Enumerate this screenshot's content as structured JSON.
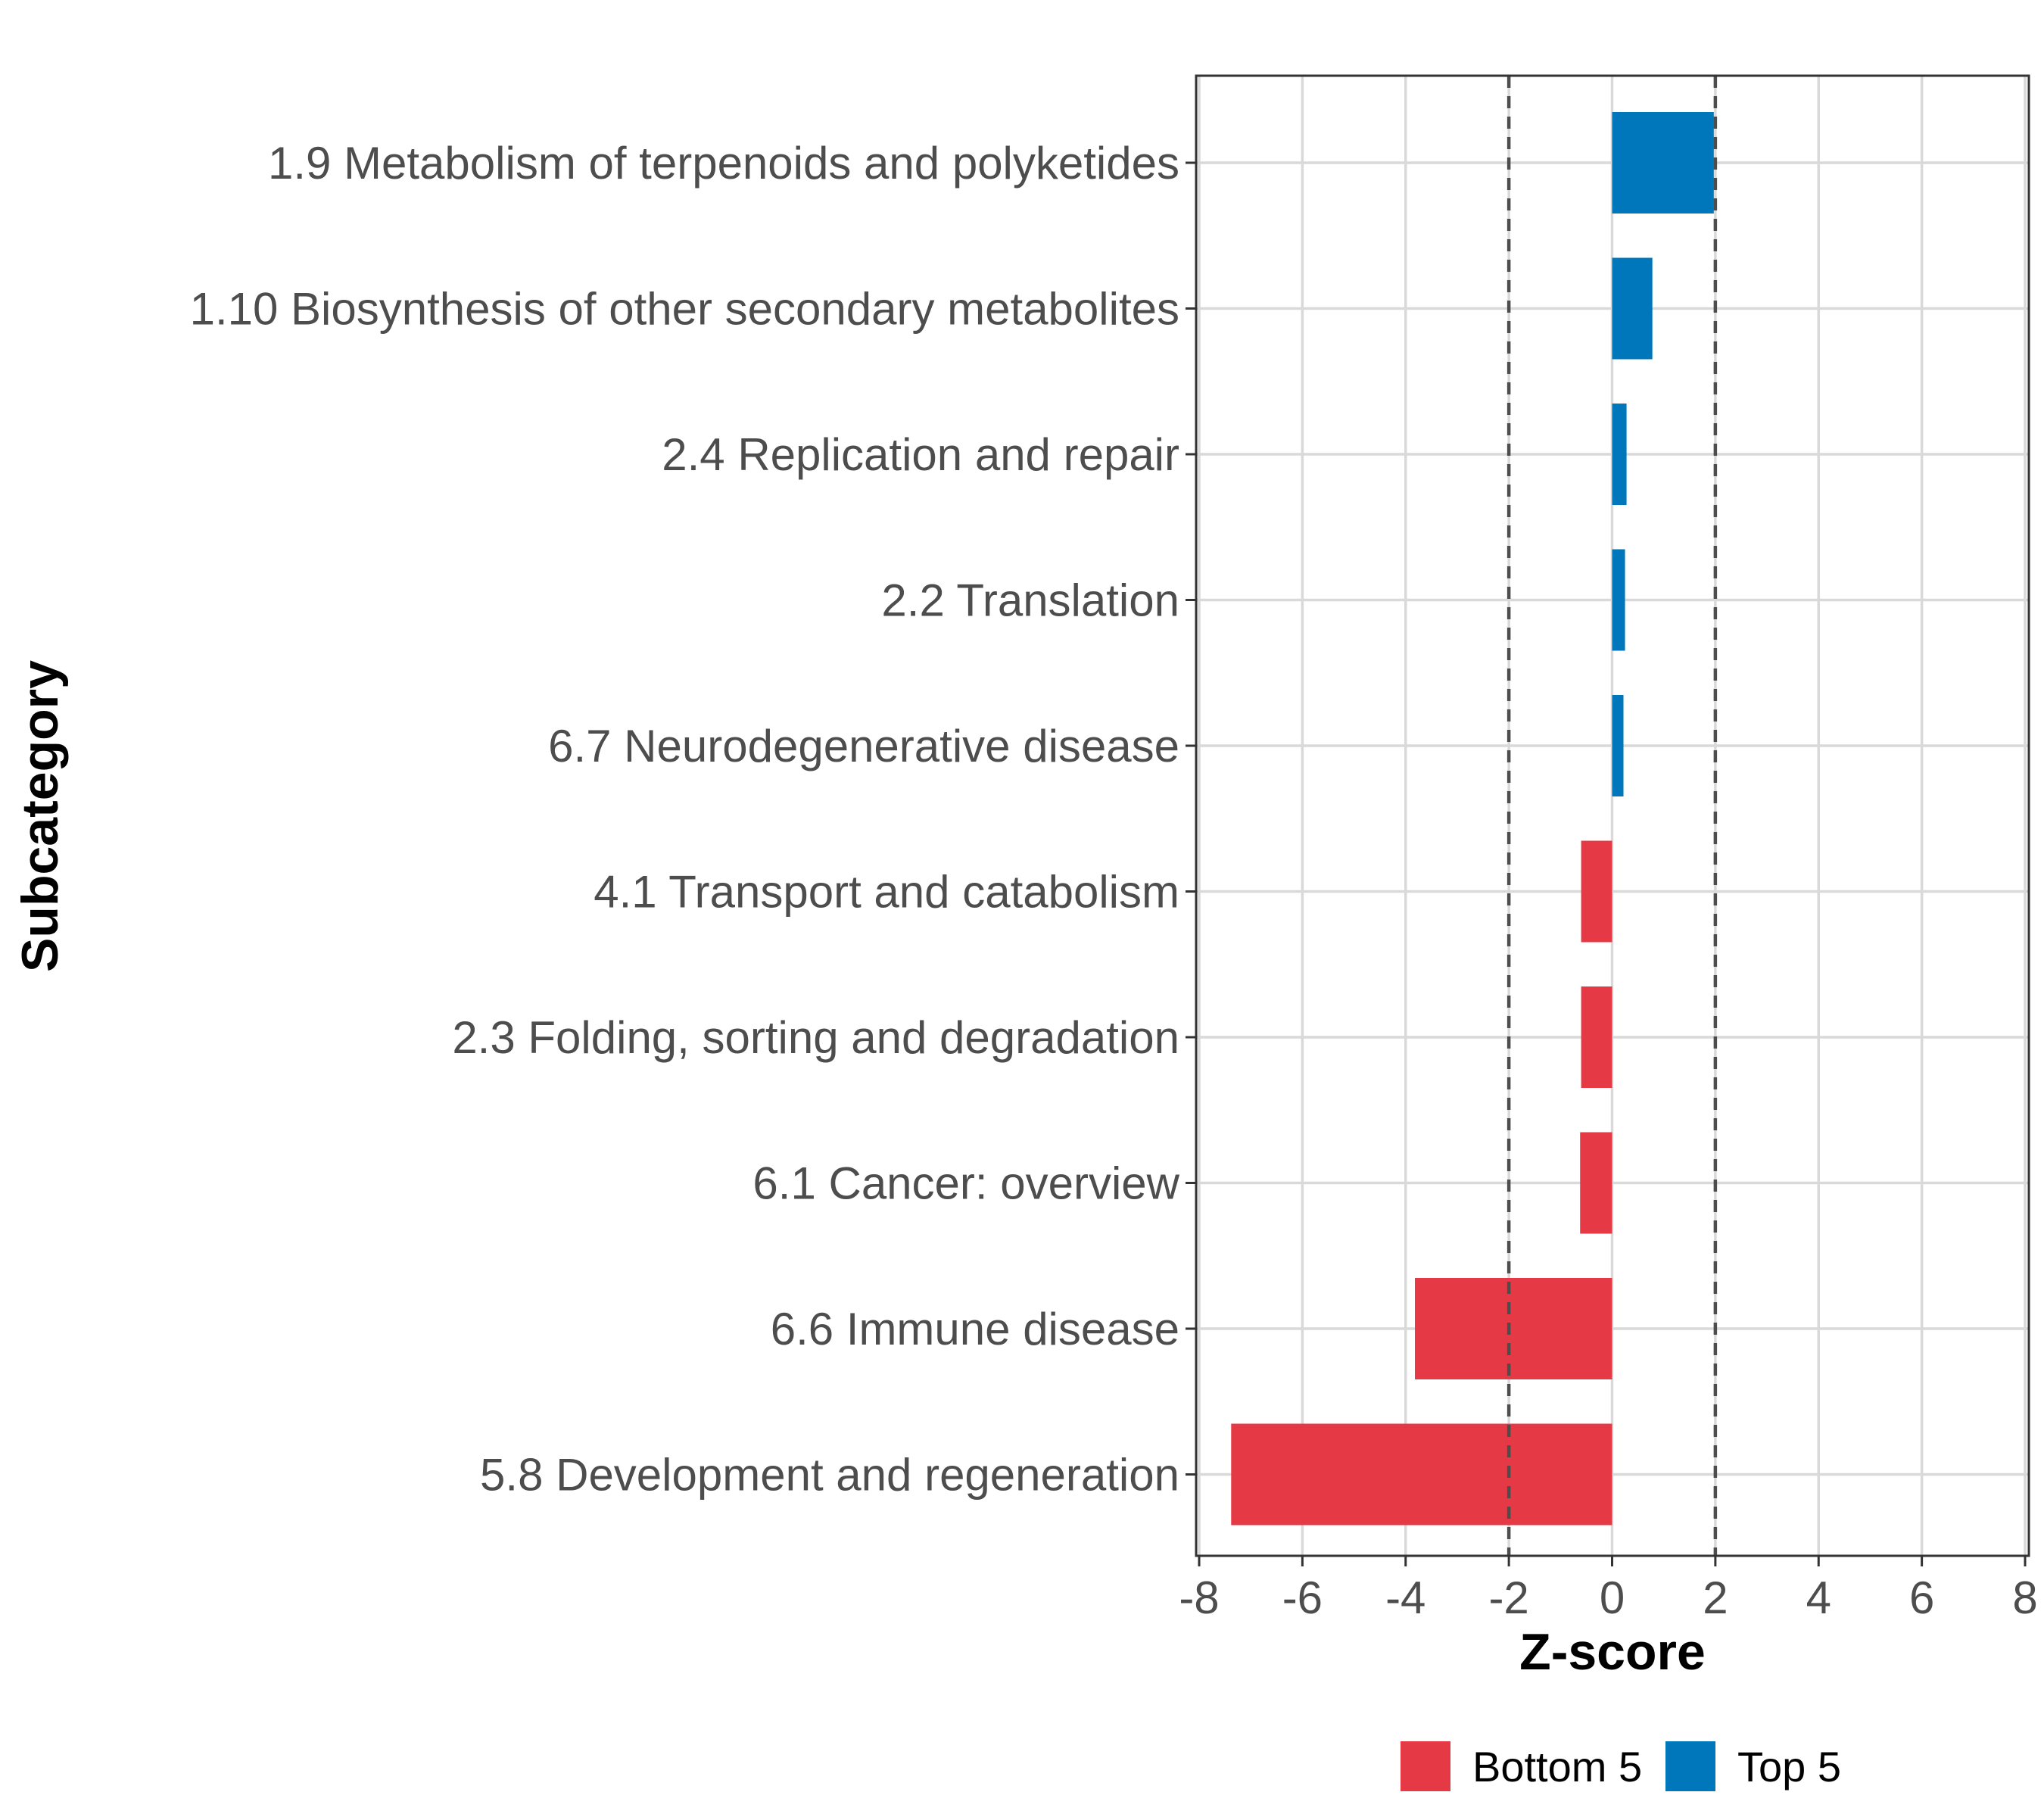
{
  "chart_data": {
    "type": "bar",
    "orientation": "horizontal",
    "xlabel": "Z-score",
    "ylabel": "Subcategory",
    "xlim": [
      -8,
      8
    ],
    "x_ticks": [
      -8,
      -6,
      -4,
      -2,
      0,
      2,
      4,
      6,
      8
    ],
    "reference_lines": [
      -2,
      2
    ],
    "grid": true,
    "categories": [
      "1.9 Metabolism of terpenoids and polyketides",
      "1.10 Biosynthesis of other secondary metabolites",
      "2.4 Replication and repair",
      "2.2 Translation",
      "6.7 Neurodegenerative disease",
      "4.1 Transport and catabolism",
      "2.3 Folding, sorting and degradation",
      "6.1 Cancer: overview",
      "6.6 Immune disease",
      "5.8 Development and regeneration"
    ],
    "values": [
      1.97,
      0.78,
      0.28,
      0.25,
      0.22,
      -0.6,
      -0.6,
      -0.62,
      -3.82,
      -7.38
    ],
    "groups": [
      "Top 5",
      "Top 5",
      "Top 5",
      "Top 5",
      "Top 5",
      "Bottom 5",
      "Bottom 5",
      "Bottom 5",
      "Bottom 5",
      "Bottom 5"
    ],
    "legend": {
      "position": "bottom",
      "entries": [
        {
          "label": "Bottom 5",
          "color": "#e63946"
        },
        {
          "label": "Top 5",
          "color": "#0077bb"
        }
      ]
    }
  }
}
